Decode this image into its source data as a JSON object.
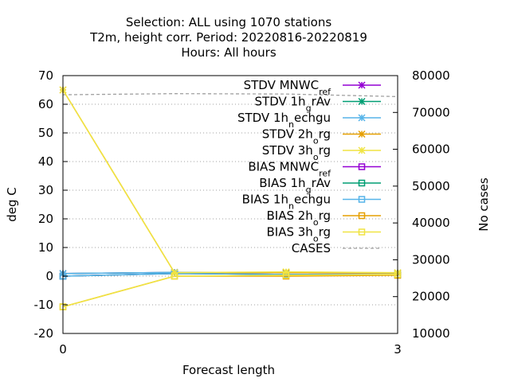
{
  "chart_data": {
    "type": "line",
    "title_lines": [
      "Selection: ALL using  1070 stations",
      "T2m, height corr.   Period: 20220816-20220819",
      "Hours:  All hours"
    ],
    "xlabel": "Forecast length",
    "ylabel": "deg C",
    "y2label": "No cases",
    "x_ticks": [
      0,
      3
    ],
    "xlim": [
      0,
      3
    ],
    "ylim": [
      -20,
      70
    ],
    "y_ticks": [
      -20,
      -10,
      0,
      10,
      20,
      30,
      40,
      50,
      60,
      70
    ],
    "y2lim": [
      10000,
      80000
    ],
    "y2_ticks": [
      10000,
      20000,
      30000,
      40000,
      50000,
      60000,
      70000,
      80000
    ],
    "grid": "horizontal dotted",
    "legend_position": "top-right",
    "x": [
      0,
      1,
      2,
      3
    ],
    "series": [
      {
        "name": "STDV MNWC_ref",
        "label_parts": [
          [
            "STDV MNWC",
            "n"
          ],
          [
            "ref",
            "sub"
          ]
        ],
        "color": "#9400d3",
        "marker": "x-star",
        "axis": "y",
        "values": [
          0.9,
          1.3,
          1.2,
          1.1
        ]
      },
      {
        "name": "STDV 1h_grAv",
        "label_parts": [
          [
            "STDV 1h",
            "n"
          ],
          [
            "g",
            "sub"
          ],
          [
            "rAv",
            "n"
          ]
        ],
        "color": "#009e73",
        "marker": "x-star",
        "axis": "y",
        "values": [
          0.9,
          1.3,
          1.2,
          1.1
        ]
      },
      {
        "name": "STDV 1h_nechgu",
        "label_parts": [
          [
            "STDV 1h",
            "n"
          ],
          [
            "n",
            "sub"
          ],
          [
            "echgu",
            "n"
          ]
        ],
        "color": "#56b4e9",
        "marker": "x-star",
        "axis": "y",
        "values": [
          0.9,
          1.3,
          1.2,
          1.1
        ]
      },
      {
        "name": "STDV 2h_org",
        "label_parts": [
          [
            "STDV 2h",
            "n"
          ],
          [
            "o",
            "sub"
          ],
          [
            "rg",
            "n"
          ]
        ],
        "color": "#e69f00",
        "marker": "x-star",
        "axis": "y",
        "values": [
          65.0,
          1.2,
          1.2,
          1.1
        ]
      },
      {
        "name": "STDV 3h_org",
        "label_parts": [
          [
            "STDV 3h",
            "n"
          ],
          [
            "o",
            "sub"
          ],
          [
            "rg",
            "n"
          ]
        ],
        "color": "#f0e442",
        "marker": "x-star",
        "axis": "y",
        "values": [
          65.0,
          1.2,
          1.5,
          1.2
        ]
      },
      {
        "name": "BIAS MNWC_ref",
        "label_parts": [
          [
            "BIAS MNWC",
            "n"
          ],
          [
            "ref",
            "sub"
          ]
        ],
        "color": "#9400d3",
        "marker": "square",
        "axis": "y",
        "values": [
          0.0,
          0.9,
          0.6,
          0.5
        ]
      },
      {
        "name": "BIAS 1h_grAv",
        "label_parts": [
          [
            "BIAS 1h",
            "n"
          ],
          [
            "g",
            "sub"
          ],
          [
            "rAv",
            "n"
          ]
        ],
        "color": "#009e73",
        "marker": "square",
        "axis": "y",
        "values": [
          0.0,
          0.9,
          0.6,
          0.5
        ]
      },
      {
        "name": "BIAS 1h_nechgu",
        "label_parts": [
          [
            "BIAS 1h",
            "n"
          ],
          [
            "n",
            "sub"
          ],
          [
            "echgu",
            "n"
          ]
        ],
        "color": "#56b4e9",
        "marker": "square",
        "axis": "y",
        "values": [
          0.0,
          0.9,
          0.6,
          0.5
        ]
      },
      {
        "name": "BIAS 2h_org",
        "label_parts": [
          [
            "BIAS 2h",
            "n"
          ],
          [
            "o",
            "sub"
          ],
          [
            "rg",
            "n"
          ]
        ],
        "color": "#e69f00",
        "marker": "square",
        "axis": "y",
        "values": [
          -10.7,
          0.0,
          0.0,
          0.3
        ]
      },
      {
        "name": "BIAS 3h_org",
        "label_parts": [
          [
            "BIAS 3h",
            "n"
          ],
          [
            "o",
            "sub"
          ],
          [
            "rg",
            "n"
          ]
        ],
        "color": "#f0e442",
        "marker": "square",
        "axis": "y",
        "values": [
          -10.7,
          0.0,
          0.3,
          0.6
        ]
      },
      {
        "name": "CASES",
        "label_parts": [
          [
            "CASES",
            "n"
          ]
        ],
        "color": "#a0a0a0",
        "marker": "none",
        "dash": true,
        "axis": "y2",
        "values": [
          74800,
          75100,
          75000,
          74300
        ]
      }
    ]
  }
}
